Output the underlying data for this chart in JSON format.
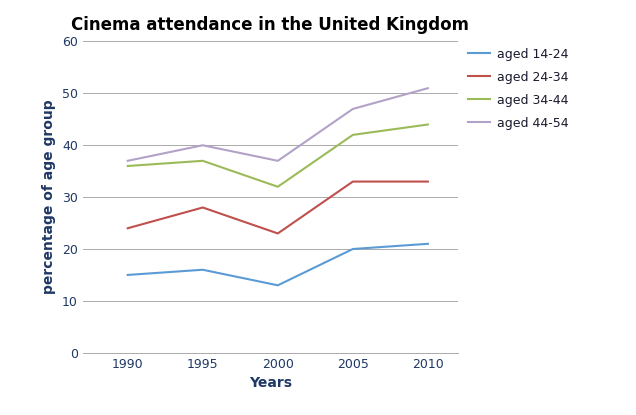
{
  "title": "Cinema attendance in the United Kingdom",
  "xlabel": "Years",
  "ylabel": "percentage of age group",
  "years": [
    1990,
    1995,
    2000,
    2005,
    2010
  ],
  "series": [
    {
      "label": "aged 14-24",
      "values": [
        15,
        16,
        13,
        20,
        21
      ],
      "color": "#5b9bd5"
    },
    {
      "label": "aged 24-34",
      "values": [
        24,
        28,
        23,
        33,
        33
      ],
      "color": "#c0504d"
    },
    {
      "label": "aged 34-44",
      "values": [
        36,
        37,
        32,
        42,
        44
      ],
      "color": "#9bbb59"
    },
    {
      "label": "aged 44-54",
      "values": [
        37,
        40,
        37,
        47,
        51
      ],
      "color": "#b3a2c7"
    }
  ],
  "ylim": [
    0,
    60
  ],
  "yticks": [
    0,
    10,
    20,
    30,
    40,
    50,
    60
  ],
  "xticks": [
    1990,
    1995,
    2000,
    2005,
    2010
  ],
  "grid_color": "#aaaaaa",
  "background_color": "#ffffff",
  "title_fontsize": 12,
  "axis_label_fontsize": 10,
  "tick_fontsize": 9,
  "legend_fontsize": 9,
  "ylabel_color": "#1f3864",
  "title_color": "#000000",
  "tick_color": "#1f3864",
  "xlabel_color": "#1f3864"
}
